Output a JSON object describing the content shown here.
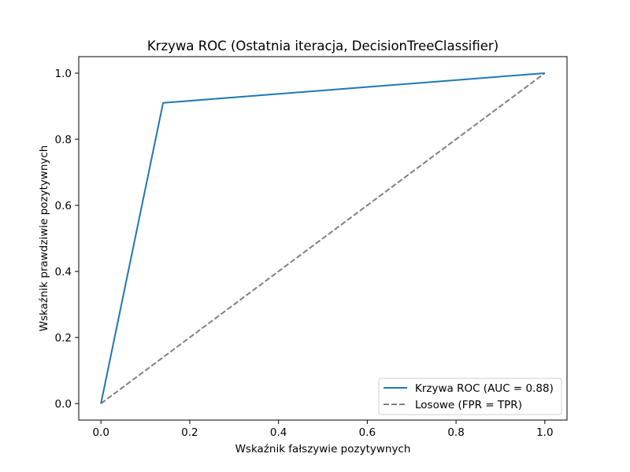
{
  "chart_data": {
    "type": "line",
    "title": "Krzywa ROC (Ostatnia iteracja, DecisionTreeClassifier)",
    "xlabel": "Wskaźnik fałszywie pozytywnych",
    "ylabel": "Wskaźnik prawdziwie pozytywnych",
    "xlim": [
      -0.05,
      1.05
    ],
    "ylim": [
      -0.05,
      1.05
    ],
    "xticks": [
      "0.0",
      "0.2",
      "0.4",
      "0.6",
      "0.8",
      "1.0"
    ],
    "yticks": [
      "0.0",
      "0.2",
      "0.4",
      "0.6",
      "0.8",
      "1.0"
    ],
    "grid": false,
    "legend_position": "lower-right",
    "series": [
      {
        "name": "Krzywa ROC (AUC = 0.88)",
        "x": [
          0.0,
          0.14,
          1.0
        ],
        "y": [
          0.0,
          0.91,
          1.0
        ],
        "color": "#1f77b4",
        "style": "solid"
      },
      {
        "name": "Losowe (FPR = TPR)",
        "x": [
          0.0,
          1.0
        ],
        "y": [
          0.0,
          1.0
        ],
        "color": "#808080",
        "style": "dashed"
      }
    ]
  }
}
